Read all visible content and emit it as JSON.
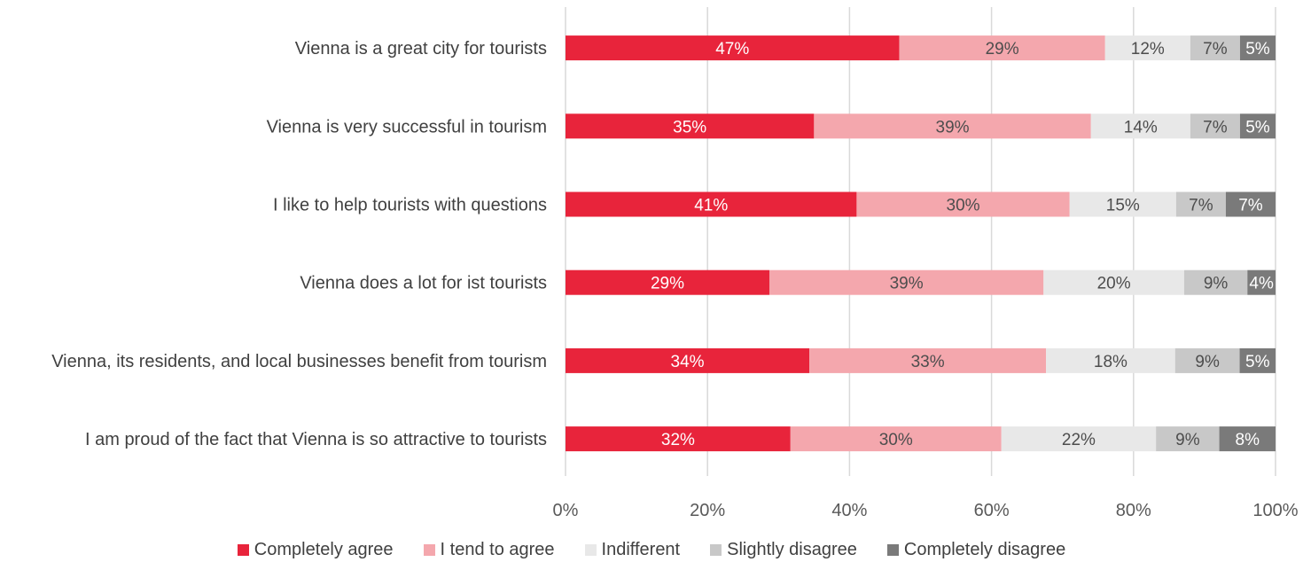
{
  "chart_data": {
    "type": "bar",
    "orientation": "horizontal",
    "stacked": "percent",
    "categories": [
      "Vienna is a great city for tourists",
      "Vienna is very successful in tourism",
      "I like to help tourists with questions",
      "Vienna does a lot for ist tourists",
      "Vienna, its residents, and local businesses benefit from tourism",
      "I am proud of the fact that Vienna is so attractive to tourists"
    ],
    "series": [
      {
        "name": "Completely agree",
        "color": "#e8243b",
        "label_color": "#ffffff",
        "values": [
          47,
          35,
          41,
          29,
          34,
          32
        ],
        "labels": [
          "47%",
          "35%",
          "41%",
          "29%",
          "34%",
          "32%"
        ]
      },
      {
        "name": "I tend to agree",
        "color": "#f4a7ad",
        "label_color": "#4d4d4d",
        "values": [
          29,
          39,
          30,
          39,
          33,
          30
        ],
        "labels": [
          "29%",
          "39%",
          "30%",
          "39%",
          "33%",
          "30%"
        ]
      },
      {
        "name": "Indifferent",
        "color": "#e8e8e8",
        "label_color": "#4d4d4d",
        "values": [
          12,
          14,
          15,
          20,
          18,
          22
        ],
        "labels": [
          "12%",
          "14%",
          "15%",
          "20%",
          "18%",
          "22%"
        ]
      },
      {
        "name": "Slightly disagree",
        "color": "#c8c8c8",
        "label_color": "#4d4d4d",
        "values": [
          7,
          7,
          7,
          9,
          9,
          9
        ],
        "labels": [
          "7%",
          "7%",
          "7%",
          "9%",
          "9%",
          "9%"
        ]
      },
      {
        "name": "Completely disagree",
        "color": "#7a7a7a",
        "label_color": "#ffffff",
        "values": [
          5,
          5,
          7,
          4,
          5,
          8
        ],
        "labels": [
          "5%",
          "5%",
          "7%",
          "4%",
          "5%",
          "8%"
        ]
      }
    ],
    "x_ticks": [
      "0%",
      "20%",
      "40%",
      "60%",
      "80%",
      "100%"
    ],
    "xlim": [
      0,
      100
    ],
    "grid": "vertical",
    "legend_position": "bottom"
  }
}
